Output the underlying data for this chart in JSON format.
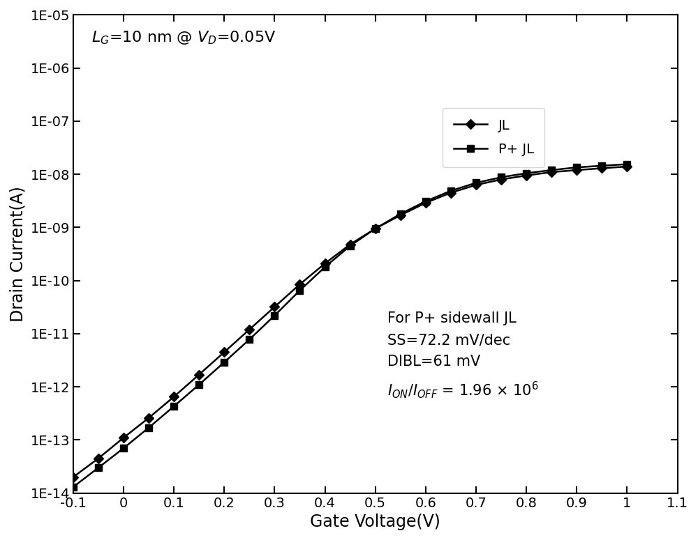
{
  "xlabel": "Gate Voltage(V)",
  "ylabel": "Drain Current(A)",
  "xlim": [
    -0.1,
    1.1
  ],
  "ylim_log": [
    -14,
    -5
  ],
  "background_color": "#ffffff",
  "line_color": "#000000",
  "JL_x": [
    -0.1,
    -0.05,
    0.0,
    0.05,
    0.1,
    0.15,
    0.2,
    0.25,
    0.3,
    0.35,
    0.4,
    0.45,
    0.5,
    0.55,
    0.6,
    0.65,
    0.7,
    0.75,
    0.8,
    0.85,
    0.9,
    0.95,
    1.0
  ],
  "JL_y": [
    2e-14,
    4.5e-14,
    1.1e-13,
    2.6e-13,
    6.5e-13,
    1.7e-12,
    4.5e-12,
    1.2e-11,
    3.2e-11,
    8.5e-11,
    2.1e-10,
    4.8e-10,
    9.5e-10,
    1.7e-09,
    2.9e-09,
    4.5e-09,
    6.3e-09,
    8e-09,
    9.5e-09,
    1.1e-08,
    1.2e-08,
    1.3e-08,
    1.4e-08
  ],
  "PJL_x": [
    -0.1,
    -0.05,
    0.0,
    0.05,
    0.1,
    0.15,
    0.2,
    0.25,
    0.3,
    0.35,
    0.4,
    0.45,
    0.5,
    0.55,
    0.6,
    0.65,
    0.7,
    0.75,
    0.8,
    0.85,
    0.9,
    0.95,
    1.0
  ],
  "PJL_y": [
    1.3e-14,
    3e-14,
    7e-14,
    1.7e-13,
    4.3e-13,
    1.1e-12,
    2.9e-12,
    7.8e-12,
    2.2e-11,
    6.5e-11,
    1.8e-10,
    4.5e-10,
    9.5e-10,
    1.8e-09,
    3.1e-09,
    4.9e-09,
    6.9e-09,
    8.8e-09,
    1.05e-08,
    1.2e-08,
    1.35e-08,
    1.45e-08,
    1.55e-08
  ],
  "legend_JL": "JL",
  "legend_PJL": "P+ JL",
  "xticks": [
    -0.1,
    0.0,
    0.1,
    0.2,
    0.3,
    0.4,
    0.5,
    0.6,
    0.7,
    0.8,
    0.9,
    1.0,
    1.1
  ],
  "xtick_labels": [
    "-0.1",
    "0",
    "0.1",
    "0.2",
    "0.3",
    "0.4",
    "0.5",
    "0.6",
    "0.7",
    "0.8",
    "0.9",
    "1",
    "1.1"
  ],
  "ytick_labels": [
    "1E-14",
    "1E-13",
    "1E-12",
    "1E-11",
    "1E-10",
    "1E-09",
    "1E-08",
    "1E-07",
    "1E-06",
    "1E-05"
  ],
  "fontsize_axis_label": 17,
  "fontsize_tick": 14,
  "fontsize_annotation": 15,
  "fontsize_title": 16,
  "fontsize_legend": 14
}
